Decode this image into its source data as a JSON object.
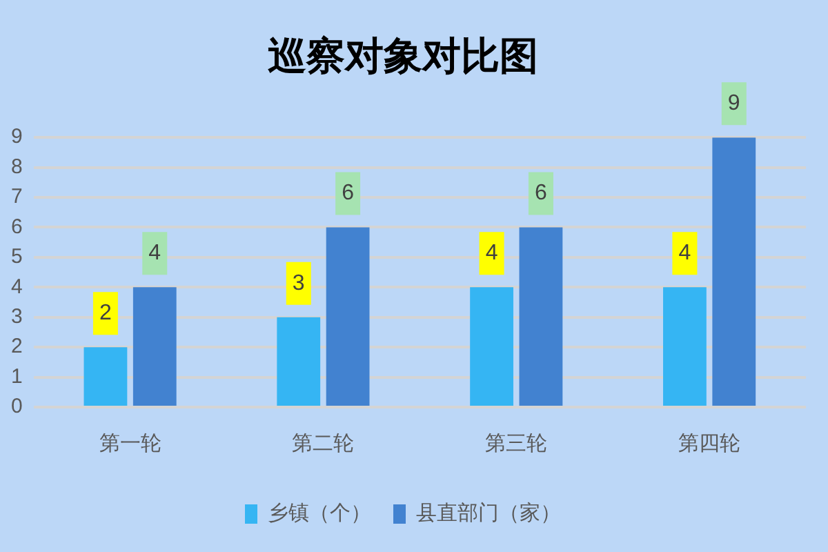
{
  "chart_data": {
    "type": "bar",
    "title": "巡察对象对比图",
    "categories": [
      "第一轮",
      "第二轮",
      "第三轮",
      "第四轮"
    ],
    "series": [
      {
        "name": "乡镇（个）",
        "color": "#35b5f3",
        "values": [
          2,
          3,
          4,
          4
        ]
      },
      {
        "name": "县直部门（家）",
        "color": "#4282d0",
        "values": [
          4,
          6,
          6,
          9
        ]
      }
    ],
    "ylim": [
      0,
      9
    ],
    "yticks": [
      0,
      1,
      2,
      3,
      4,
      5,
      6,
      7,
      8,
      9
    ],
    "grid": "y",
    "legend": "bottom",
    "data_labels": true
  }
}
